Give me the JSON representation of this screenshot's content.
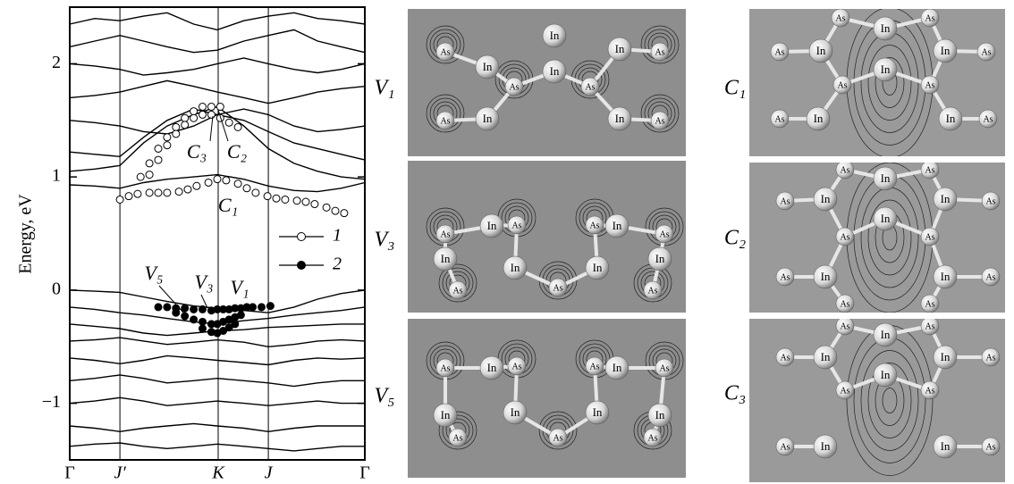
{
  "chart_data": {
    "type": "bands",
    "y_label": "Energy, eV",
    "xlim": [
      0,
      1
    ],
    "ylim": [
      -1.5,
      2.5
    ],
    "xticks": [
      {
        "value": 0,
        "label": "Γ"
      },
      {
        "value": 0.17,
        "label": "J′"
      },
      {
        "value": 0.503,
        "label": "K"
      },
      {
        "value": 0.673,
        "label": "J"
      },
      {
        "value": 1,
        "label": "Γ"
      }
    ],
    "yticks": [
      {
        "value": -1,
        "label": "−1"
      },
      0,
      1,
      2
    ],
    "band_x": [
      0,
      0.085,
      0.17,
      0.25,
      0.33,
      0.42,
      0.5,
      0.59,
      0.673,
      0.76,
      0.84,
      0.92,
      1.0
    ],
    "bands": [
      [
        0.93,
        0.92,
        0.9,
        0.95,
        0.98,
        1.0,
        1.02,
        0.98,
        0.92,
        0.88,
        0.87,
        0.9,
        0.95
      ],
      [
        1.05,
        1.07,
        1.1,
        1.3,
        1.45,
        1.55,
        1.62,
        1.45,
        1.25,
        1.12,
        1.05,
        1.0,
        0.98
      ],
      [
        1.22,
        1.2,
        1.18,
        1.35,
        1.5,
        1.6,
        1.55,
        1.5,
        1.4,
        1.3,
        1.25,
        1.2,
        1.15
      ],
      [
        1.5,
        1.48,
        1.45,
        1.4,
        1.38,
        1.45,
        1.55,
        1.6,
        1.55,
        1.45,
        1.4,
        1.42,
        1.45
      ],
      [
        1.7,
        1.72,
        1.75,
        1.8,
        1.85,
        1.8,
        1.75,
        1.7,
        1.65,
        1.7,
        1.75,
        1.78,
        1.8
      ],
      [
        2.0,
        1.98,
        1.95,
        1.9,
        1.92,
        1.95,
        2.0,
        2.05,
        2.0,
        1.95,
        1.92,
        1.95,
        2.0
      ],
      [
        2.15,
        2.2,
        2.25,
        2.2,
        2.15,
        2.1,
        2.12,
        2.2,
        2.25,
        2.3,
        2.2,
        2.15,
        2.1
      ],
      [
        2.35,
        2.4,
        2.38,
        2.42,
        2.45,
        2.35,
        2.3,
        2.38,
        2.42,
        2.45,
        2.4,
        2.38,
        2.35
      ],
      [
        0.0,
        -0.01,
        -0.02,
        -0.06,
        -0.1,
        -0.14,
        -0.16,
        -0.18,
        -0.2,
        -0.15,
        -0.08,
        -0.03,
        0.0
      ],
      [
        -0.15,
        -0.17,
        -0.2,
        -0.22,
        -0.25,
        -0.28,
        -0.3,
        -0.27,
        -0.25,
        -0.22,
        -0.2,
        -0.18,
        -0.15
      ],
      [
        -0.3,
        -0.32,
        -0.34,
        -0.38,
        -0.4,
        -0.38,
        -0.36,
        -0.35,
        -0.33,
        -0.32,
        -0.31,
        -0.3,
        -0.3
      ],
      [
        -0.45,
        -0.44,
        -0.42,
        -0.45,
        -0.48,
        -0.46,
        -0.44,
        -0.46,
        -0.5,
        -0.48,
        -0.45,
        -0.44,
        -0.45
      ],
      [
        -0.6,
        -0.62,
        -0.65,
        -0.62,
        -0.58,
        -0.6,
        -0.62,
        -0.64,
        -0.66,
        -0.62,
        -0.6,
        -0.61,
        -0.6
      ],
      [
        -0.8,
        -0.78,
        -0.75,
        -0.78,
        -0.82,
        -0.8,
        -0.78,
        -0.8,
        -0.82,
        -0.85,
        -0.82,
        -0.8,
        -0.8
      ],
      [
        -1.0,
        -0.98,
        -0.95,
        -0.98,
        -1.02,
        -1.0,
        -0.98,
        -1.0,
        -1.02,
        -1.0,
        -0.98,
        -1.0,
        -1.0
      ],
      [
        -1.2,
        -1.22,
        -1.25,
        -1.22,
        -1.2,
        -1.18,
        -1.2,
        -1.22,
        -1.25,
        -1.22,
        -1.2,
        -1.2,
        -1.2
      ],
      [
        -1.38,
        -1.36,
        -1.35,
        -1.38,
        -1.4,
        -1.38,
        -1.36,
        -1.38,
        -1.4,
        -1.42,
        -1.4,
        -1.38,
        -1.38
      ]
    ],
    "series": [
      {
        "name": "1",
        "marker": "open",
        "x": [
          0.17,
          0.2,
          0.23,
          0.27,
          0.3,
          0.33,
          0.37,
          0.4,
          0.43,
          0.47,
          0.5,
          0.53,
          0.57,
          0.6,
          0.63,
          0.67,
          0.7,
          0.73,
          0.77,
          0.8,
          0.83,
          0.87,
          0.9,
          0.93,
          0.24,
          0.27,
          0.3,
          0.33,
          0.36,
          0.39,
          0.42,
          0.45,
          0.48,
          0.51,
          0.27,
          0.3,
          0.33,
          0.36,
          0.39,
          0.42,
          0.45,
          0.48,
          0.51,
          0.54,
          0.57
        ],
        "values": [
          0.8,
          0.83,
          0.85,
          0.86,
          0.86,
          0.86,
          0.87,
          0.89,
          0.92,
          0.95,
          0.98,
          0.97,
          0.94,
          0.9,
          0.86,
          0.83,
          0.81,
          0.8,
          0.79,
          0.78,
          0.76,
          0.73,
          0.7,
          0.68,
          1.0,
          1.12,
          1.25,
          1.35,
          1.44,
          1.52,
          1.58,
          1.62,
          1.62,
          1.62,
          1.02,
          1.15,
          1.28,
          1.38,
          1.46,
          1.52,
          1.55,
          1.55,
          1.52,
          1.48,
          1.44
        ]
      },
      {
        "name": "2",
        "marker": "filled",
        "x": [
          0.3,
          0.33,
          0.36,
          0.39,
          0.42,
          0.45,
          0.48,
          0.5,
          0.52,
          0.54,
          0.56,
          0.58,
          0.6,
          0.62,
          0.65,
          0.68,
          0.36,
          0.39,
          0.42,
          0.45,
          0.48,
          0.5,
          0.52,
          0.54,
          0.56,
          0.58,
          0.45,
          0.48,
          0.5,
          0.52,
          0.54,
          0.56
        ],
        "values": [
          -0.15,
          -0.15,
          -0.16,
          -0.16,
          -0.17,
          -0.17,
          -0.18,
          -0.17,
          -0.17,
          -0.17,
          -0.16,
          -0.16,
          -0.15,
          -0.15,
          -0.15,
          -0.14,
          -0.2,
          -0.23,
          -0.26,
          -0.28,
          -0.3,
          -0.3,
          -0.28,
          -0.26,
          -0.24,
          -0.22,
          -0.34,
          -0.37,
          -0.38,
          -0.36,
          -0.33,
          -0.3
        ]
      }
    ],
    "legend": "center-right",
    "annotations": [
      "C₁",
      "C₂",
      "C₃",
      "V₁",
      "V₃",
      "V₅"
    ]
  },
  "panels": [
    {
      "label": "V₁",
      "atoms": [
        "As",
        "In",
        "In",
        "In",
        "As",
        "As",
        "In",
        "As",
        "As",
        "In",
        "In",
        "As"
      ]
    },
    {
      "label": "V₃",
      "atoms": [
        "In",
        "As",
        "As",
        "In",
        "In",
        "In",
        "In",
        "As",
        "In",
        "As",
        "As",
        "As",
        "As"
      ]
    },
    {
      "label": "V₅",
      "atoms": [
        "As",
        "In",
        "As",
        "In",
        "As",
        "As",
        "In",
        "In",
        "In",
        "In",
        "As",
        "As",
        "As"
      ]
    },
    {
      "label": "C₁",
      "atoms": [
        "As",
        "In",
        "As",
        "In",
        "In",
        "As",
        "In",
        "As",
        "As",
        "As",
        "As",
        "In",
        "In",
        "As"
      ]
    },
    {
      "label": "C₂",
      "atoms": [
        "As",
        "In",
        "As",
        "In",
        "In",
        "As",
        "In",
        "As",
        "As",
        "As",
        "As",
        "In",
        "In",
        "As",
        "As",
        "As"
      ]
    },
    {
      "label": "C₃",
      "atoms": [
        "As",
        "In",
        "As",
        "In",
        "In",
        "As",
        "In",
        "As",
        "As",
        "As",
        "As",
        "In",
        "In",
        "As"
      ]
    }
  ]
}
